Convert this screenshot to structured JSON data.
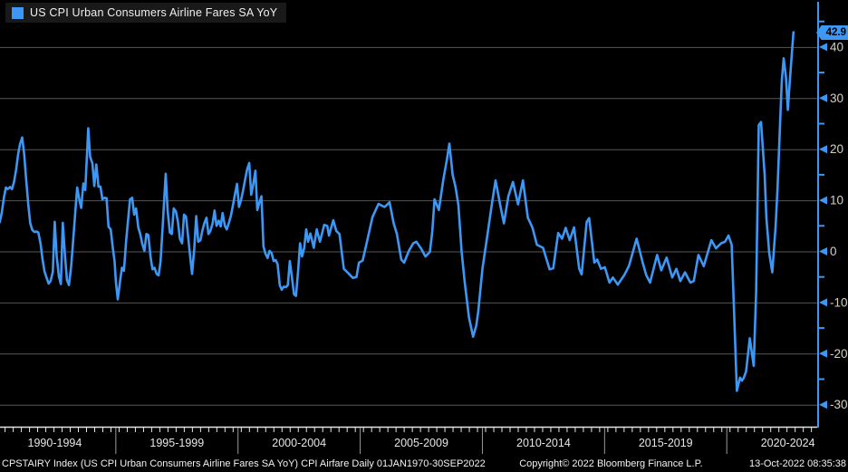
{
  "window_title": "US CPI Urban Consumers Airline Fares SA YoY",
  "colors": {
    "background": "#000000",
    "line": "#3D97F5",
    "axis": "#3D97F5",
    "grid": "#565656",
    "y_label": "#D6D0C2",
    "x_label": "#E6E6E6",
    "footer_text": "#F2F2F2",
    "legend_bg": "#191919",
    "tag_bg": "#3D97F5",
    "tag_text": "#000000",
    "x_axis_line": "#E6E6E6",
    "separator": "#9A9A9A"
  },
  "legend": {
    "label": "US CPI Urban Consumers Airline Fares SA YoY",
    "swatch": "blue-square"
  },
  "last_value_tag": "42.9",
  "y_axis": {
    "major_ticks": [
      40,
      30,
      20,
      10,
      0,
      -10,
      -20,
      -30
    ],
    "minor_ticks": [
      45,
      35,
      25,
      15,
      5,
      -5,
      -15,
      -25
    ]
  },
  "x_axis": {
    "bins": [
      {
        "label": "1990-1994",
        "start": 1990
      },
      {
        "label": "1995-1999",
        "start": 1995
      },
      {
        "label": "2000-2004",
        "start": 2000
      },
      {
        "label": "2005-2009",
        "start": 2005
      },
      {
        "label": "2010-2014",
        "start": 2010
      },
      {
        "label": "2015-2019",
        "start": 2015
      },
      {
        "label": "2020-2024",
        "start": 2020
      }
    ],
    "separator_years": [
      1995,
      2000,
      2005,
      2010,
      2015,
      2020
    ],
    "minor_tick_step_years": 0.3333
  },
  "footer": {
    "left": "CPSTAIRY Index (US CPI Urban Consumers Airline Fares SA YoY) CPI Airfare  Daily 01JAN1970-30SEP2022",
    "copyright": "Copyright© 2022 Bloomberg Finance L.P.",
    "timestamp": "13-Oct-2022 08:35:38"
  },
  "chart_data": {
    "type": "line",
    "title": "US CPI Urban Consumers Airline Fares SA YoY",
    "xlabel": "",
    "ylabel": "",
    "grid": "horizontal",
    "legend_position": "top-left",
    "xlim": [
      1990.26,
      2023.7
    ],
    "ylim": [
      -34.31,
      49.2
    ],
    "last_value": 42.9,
    "series": [
      {
        "name": "US CPI Urban Consumers Airline Fares SA YoY",
        "color": "#3D97F5",
        "points": [
          [
            1990.25,
            5.7
          ],
          [
            1990.33,
            7.5
          ],
          [
            1990.42,
            10.5
          ],
          [
            1990.5,
            12.5
          ],
          [
            1990.58,
            12.2
          ],
          [
            1990.67,
            12.6
          ],
          [
            1990.75,
            12.2
          ],
          [
            1990.83,
            13.5
          ],
          [
            1990.92,
            16
          ],
          [
            1991.0,
            19
          ],
          [
            1991.08,
            21
          ],
          [
            1991.17,
            22.3
          ],
          [
            1991.25,
            19
          ],
          [
            1991.33,
            14
          ],
          [
            1991.42,
            9
          ],
          [
            1991.5,
            5.5
          ],
          [
            1991.58,
            4.2
          ],
          [
            1991.67,
            3.8
          ],
          [
            1991.75,
            3.9
          ],
          [
            1991.83,
            3.7
          ],
          [
            1991.92,
            1.5
          ],
          [
            1992.0,
            -1.5
          ],
          [
            1992.08,
            -3.9
          ],
          [
            1992.17,
            -5.2
          ],
          [
            1992.25,
            -6.3
          ],
          [
            1992.33,
            -5.8
          ],
          [
            1992.42,
            -4
          ],
          [
            1992.5,
            5.8
          ],
          [
            1992.58,
            -1
          ],
          [
            1992.67,
            -4.9
          ],
          [
            1992.75,
            -6.4
          ],
          [
            1992.83,
            5.6
          ],
          [
            1992.92,
            -1
          ],
          [
            1993.0,
            -5.6
          ],
          [
            1993.08,
            -6.6
          ],
          [
            1993.17,
            -3
          ],
          [
            1993.25,
            2
          ],
          [
            1993.33,
            7
          ],
          [
            1993.42,
            12.5
          ],
          [
            1993.5,
            10.3
          ],
          [
            1993.58,
            8.5
          ],
          [
            1993.67,
            13.3
          ],
          [
            1993.75,
            12
          ],
          [
            1993.83,
            20
          ],
          [
            1993.87,
            24.1
          ],
          [
            1993.95,
            18.5
          ],
          [
            1994.04,
            17.2
          ],
          [
            1994.12,
            12.8
          ],
          [
            1994.2,
            17
          ],
          [
            1994.29,
            12.7
          ],
          [
            1994.37,
            12.7
          ],
          [
            1994.45,
            10.2
          ],
          [
            1994.54,
            10.5
          ],
          [
            1994.62,
            10.4
          ],
          [
            1994.7,
            4.8
          ],
          [
            1994.79,
            4.3
          ],
          [
            1994.87,
            1
          ],
          [
            1994.95,
            -2
          ],
          [
            1995.0,
            -5.9
          ],
          [
            1995.08,
            -9.4
          ],
          [
            1995.17,
            -6
          ],
          [
            1995.25,
            -3.2
          ],
          [
            1995.33,
            -3.8
          ],
          [
            1995.42,
            2
          ],
          [
            1995.5,
            6
          ],
          [
            1995.58,
            10.2
          ],
          [
            1995.67,
            10.5
          ],
          [
            1995.75,
            7.2
          ],
          [
            1995.83,
            8.4
          ],
          [
            1995.92,
            4.6
          ],
          [
            1996.0,
            3.4
          ],
          [
            1996.08,
            1.5
          ],
          [
            1996.17,
            0.1
          ],
          [
            1996.25,
            3.4
          ],
          [
            1996.33,
            3.2
          ],
          [
            1996.42,
            -1.1
          ],
          [
            1996.5,
            -3.5
          ],
          [
            1996.58,
            -3.2
          ],
          [
            1996.67,
            -4.4
          ],
          [
            1996.75,
            -4.7
          ],
          [
            1996.83,
            -2
          ],
          [
            1996.92,
            5
          ],
          [
            1997.04,
            15.2
          ],
          [
            1997.12,
            8
          ],
          [
            1997.21,
            3.7
          ],
          [
            1997.29,
            3.4
          ],
          [
            1997.37,
            8.4
          ],
          [
            1997.46,
            7.8
          ],
          [
            1997.54,
            5.8
          ],
          [
            1997.62,
            2.5
          ],
          [
            1997.71,
            1.6
          ],
          [
            1997.79,
            7.2
          ],
          [
            1997.87,
            6.8
          ],
          [
            1997.96,
            2.8
          ],
          [
            1998.04,
            -1
          ],
          [
            1998.12,
            -4.4
          ],
          [
            1998.21,
            0.5
          ],
          [
            1998.29,
            6.9
          ],
          [
            1998.37,
            1.9
          ],
          [
            1998.46,
            2.2
          ],
          [
            1998.54,
            4
          ],
          [
            1998.62,
            5.5
          ],
          [
            1998.71,
            6.6
          ],
          [
            1998.79,
            3.4
          ],
          [
            1998.87,
            4
          ],
          [
            1998.96,
            5.5
          ],
          [
            1999.04,
            8
          ],
          [
            1999.12,
            5
          ],
          [
            1999.21,
            6
          ],
          [
            1999.29,
            4.9
          ],
          [
            1999.37,
            7.5
          ],
          [
            1999.46,
            5
          ],
          [
            1999.54,
            4.3
          ],
          [
            1999.62,
            5.5
          ],
          [
            1999.71,
            7
          ],
          [
            1999.79,
            9
          ],
          [
            1999.87,
            11
          ],
          [
            1999.96,
            13.2
          ],
          [
            2000.04,
            8.7
          ],
          [
            2000.12,
            10
          ],
          [
            2000.21,
            12
          ],
          [
            2000.29,
            14
          ],
          [
            2000.37,
            16
          ],
          [
            2000.46,
            17.3
          ],
          [
            2000.54,
            11.1
          ],
          [
            2000.62,
            13
          ],
          [
            2000.71,
            15.8
          ],
          [
            2000.79,
            8.1
          ],
          [
            2000.87,
            9.5
          ],
          [
            2000.96,
            10.8
          ],
          [
            2001.04,
            1
          ],
          [
            2001.12,
            -0.4
          ],
          [
            2001.21,
            -1.3
          ],
          [
            2001.29,
            0.1
          ],
          [
            2001.37,
            -0.3
          ],
          [
            2001.46,
            -1.9
          ],
          [
            2001.54,
            -1.7
          ],
          [
            2001.62,
            -2.5
          ],
          [
            2001.71,
            -6.6
          ],
          [
            2001.79,
            -7.5
          ],
          [
            2001.87,
            -6.9
          ],
          [
            2001.96,
            -7
          ],
          [
            2002.04,
            -6.6
          ],
          [
            2002.12,
            -1.9
          ],
          [
            2002.21,
            -5.2
          ],
          [
            2002.29,
            -8.4
          ],
          [
            2002.37,
            -8.7
          ],
          [
            2002.46,
            -3.7
          ],
          [
            2002.54,
            1.6
          ],
          [
            2002.62,
            -1
          ],
          [
            2002.71,
            0.7
          ],
          [
            2002.79,
            4.3
          ],
          [
            2002.87,
            1.9
          ],
          [
            2002.96,
            3.5
          ],
          [
            2003.1,
            0.7
          ],
          [
            2003.22,
            4.3
          ],
          [
            2003.35,
            1.9
          ],
          [
            2003.53,
            5.2
          ],
          [
            2003.65,
            5
          ],
          [
            2003.72,
            3.1
          ],
          [
            2003.9,
            6.1
          ],
          [
            2004.02,
            4
          ],
          [
            2004.15,
            3.4
          ],
          [
            2004.33,
            -3.4
          ],
          [
            2004.5,
            -4.2
          ],
          [
            2004.7,
            -5.2
          ],
          [
            2004.85,
            -5
          ],
          [
            2004.95,
            -2.2
          ],
          [
            2005.1,
            -1.8
          ],
          [
            2005.32,
            2.8
          ],
          [
            2005.5,
            6.7
          ],
          [
            2005.75,
            9.3
          ],
          [
            2005.9,
            8.9
          ],
          [
            2006.0,
            8.7
          ],
          [
            2006.2,
            9.6
          ],
          [
            2006.37,
            5.5
          ],
          [
            2006.5,
            3.4
          ],
          [
            2006.68,
            -1.6
          ],
          [
            2006.8,
            -2.2
          ],
          [
            2006.99,
            0.1
          ],
          [
            2007.17,
            1.6
          ],
          [
            2007.3,
            1.9
          ],
          [
            2007.5,
            0.5
          ],
          [
            2007.67,
            -1
          ],
          [
            2007.85,
            -0.1
          ],
          [
            2007.95,
            4
          ],
          [
            2008.04,
            10.2
          ],
          [
            2008.22,
            8.1
          ],
          [
            2008.4,
            14
          ],
          [
            2008.55,
            18
          ],
          [
            2008.65,
            21.1
          ],
          [
            2008.78,
            15
          ],
          [
            2008.9,
            12.6
          ],
          [
            2009.02,
            9
          ],
          [
            2009.15,
            0
          ],
          [
            2009.27,
            -5.8
          ],
          [
            2009.45,
            -12.9
          ],
          [
            2009.62,
            -16.7
          ],
          [
            2009.75,
            -14.5
          ],
          [
            2009.83,
            -11.7
          ],
          [
            2010.0,
            -3.4
          ],
          [
            2010.2,
            3.1
          ],
          [
            2010.38,
            9
          ],
          [
            2010.54,
            13.9
          ],
          [
            2010.73,
            9
          ],
          [
            2010.88,
            5.5
          ],
          [
            2011.06,
            10.8
          ],
          [
            2011.25,
            13.6
          ],
          [
            2011.46,
            9.2
          ],
          [
            2011.66,
            13.9
          ],
          [
            2011.86,
            6.6
          ],
          [
            2012.05,
            4.6
          ],
          [
            2012.23,
            1.3
          ],
          [
            2012.48,
            0.7
          ],
          [
            2012.75,
            -3.5
          ],
          [
            2012.9,
            -3.3
          ],
          [
            2013.1,
            3.6
          ],
          [
            2013.26,
            2.5
          ],
          [
            2013.41,
            4.6
          ],
          [
            2013.57,
            2.2
          ],
          [
            2013.75,
            4.7
          ],
          [
            2013.96,
            -3.4
          ],
          [
            2014.06,
            -4.5
          ],
          [
            2014.27,
            5.8
          ],
          [
            2014.37,
            6.5
          ],
          [
            2014.58,
            -2.2
          ],
          [
            2014.7,
            -1.6
          ],
          [
            2014.85,
            -3.4
          ],
          [
            2015.01,
            -3.1
          ],
          [
            2015.2,
            -6.1
          ],
          [
            2015.34,
            -5.1
          ],
          [
            2015.54,
            -6.5
          ],
          [
            2015.81,
            -4.6
          ],
          [
            2016.0,
            -2.8
          ],
          [
            2016.31,
            2.5
          ],
          [
            2016.56,
            -2.2
          ],
          [
            2016.7,
            -4.6
          ],
          [
            2016.86,
            -6.1
          ],
          [
            2017.15,
            -0.7
          ],
          [
            2017.32,
            -3.7
          ],
          [
            2017.54,
            -1.2
          ],
          [
            2017.77,
            -5.1
          ],
          [
            2017.94,
            -3.4
          ],
          [
            2018.1,
            -5.8
          ],
          [
            2018.29,
            -4.1
          ],
          [
            2018.51,
            -6.1
          ],
          [
            2018.65,
            -5.8
          ],
          [
            2018.84,
            -0.7
          ],
          [
            2019.06,
            -2.9
          ],
          [
            2019.37,
            2.2
          ],
          [
            2019.56,
            0.6
          ],
          [
            2019.77,
            1.6
          ],
          [
            2019.93,
            1.9
          ],
          [
            2020.07,
            3.1
          ],
          [
            2020.2,
            1.3
          ],
          [
            2020.3,
            -12
          ],
          [
            2020.41,
            -27.3
          ],
          [
            2020.54,
            -24.7
          ],
          [
            2020.62,
            -25.3
          ],
          [
            2020.69,
            -24.8
          ],
          [
            2020.79,
            -23.5
          ],
          [
            2020.94,
            -17
          ],
          [
            2021.1,
            -22.4
          ],
          [
            2021.2,
            -8
          ],
          [
            2021.31,
            24.7
          ],
          [
            2021.4,
            25.3
          ],
          [
            2021.55,
            15
          ],
          [
            2021.62,
            6.6
          ],
          [
            2021.74,
            -0.4
          ],
          [
            2021.86,
            -4.1
          ],
          [
            2022.0,
            4.9
          ],
          [
            2022.08,
            12.7
          ],
          [
            2022.17,
            23.6
          ],
          [
            2022.25,
            33.3
          ],
          [
            2022.33,
            37.8
          ],
          [
            2022.42,
            34.1
          ],
          [
            2022.5,
            27.7
          ],
          [
            2022.58,
            33.4
          ],
          [
            2022.73,
            42.9
          ]
        ]
      }
    ]
  }
}
